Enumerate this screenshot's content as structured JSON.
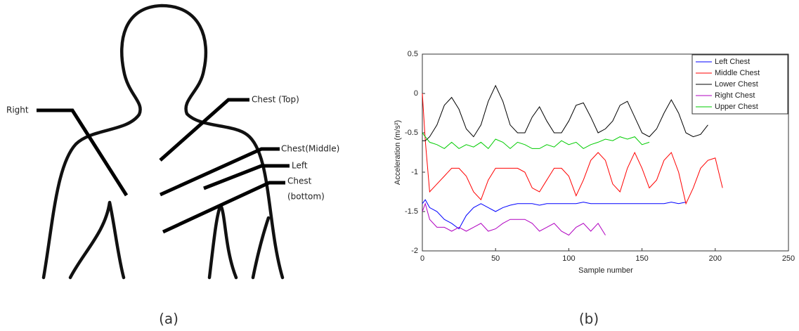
{
  "diagram": {
    "labels": [
      "Right",
      "Chest (Top)",
      "Chest(Middle)",
      "Left",
      "Chest",
      "(bottom)"
    ]
  },
  "captions": [
    "(a)",
    "(b)"
  ],
  "chart_data": {
    "type": "line",
    "x_label": "Sample number",
    "y_label": "Acceleration (m/s²)",
    "x": [
      0,
      2,
      5,
      10,
      15,
      20,
      25,
      30,
      35,
      40,
      45,
      50,
      55,
      60,
      65,
      70,
      75,
      80,
      85,
      90,
      95,
      100,
      105,
      110,
      115,
      120,
      125,
      130,
      135,
      140,
      145,
      150,
      155,
      160,
      165,
      170,
      175,
      180,
      185,
      190,
      195,
      200,
      205
    ],
    "series": [
      {
        "name": "Left Chest",
        "color": "#0000ff",
        "values": [
          -1.4,
          -1.35,
          -1.45,
          -1.5,
          -1.6,
          -1.65,
          -1.72,
          -1.55,
          -1.45,
          -1.4,
          -1.45,
          -1.5,
          -1.45,
          -1.42,
          -1.4,
          -1.4,
          -1.4,
          -1.42,
          -1.4,
          -1.4,
          -1.4,
          -1.4,
          -1.4,
          -1.38,
          -1.4,
          -1.4,
          -1.4,
          -1.4,
          -1.4,
          -1.4,
          -1.4,
          -1.4,
          -1.4,
          -1.4,
          -1.4,
          -1.38,
          -1.4,
          -1.38,
          null,
          null,
          null,
          null,
          null
        ]
      },
      {
        "name": "Middle Chest",
        "color": "#ff0000",
        "values": [
          0,
          -0.6,
          -1.25,
          -1.15,
          -1.05,
          -0.95,
          -0.95,
          -1.05,
          -1.25,
          -1.35,
          -1.1,
          -0.95,
          -0.95,
          -0.95,
          -0.95,
          -1.0,
          -1.2,
          -1.25,
          -1.1,
          -0.95,
          -0.95,
          -1.05,
          -1.3,
          -1.1,
          -0.85,
          -0.75,
          -0.85,
          -1.15,
          -1.25,
          -0.95,
          -0.75,
          -0.95,
          -1.2,
          -1.1,
          -0.85,
          -0.75,
          -1.0,
          -1.4,
          -1.2,
          -0.95,
          -0.85,
          -0.82,
          -1.2
        ]
      },
      {
        "name": "Lower Chest",
        "color": "#000000",
        "values": [
          -0.6,
          -0.6,
          -0.55,
          -0.4,
          -0.15,
          -0.05,
          -0.2,
          -0.45,
          -0.55,
          -0.4,
          -0.1,
          0.1,
          -0.1,
          -0.4,
          -0.5,
          -0.5,
          -0.3,
          -0.17,
          -0.35,
          -0.5,
          -0.5,
          -0.35,
          -0.15,
          -0.12,
          -0.3,
          -0.5,
          -0.45,
          -0.35,
          -0.15,
          -0.1,
          -0.3,
          -0.5,
          -0.55,
          -0.45,
          -0.25,
          -0.08,
          -0.25,
          -0.5,
          -0.55,
          -0.52,
          -0.4,
          null,
          null
        ]
      },
      {
        "name": "Right Chest",
        "color": "#b000c0",
        "values": [
          -1.5,
          -1.4,
          -1.6,
          -1.7,
          -1.7,
          -1.75,
          -1.7,
          -1.75,
          -1.7,
          -1.65,
          -1.75,
          -1.72,
          -1.65,
          -1.6,
          -1.6,
          -1.6,
          -1.65,
          -1.75,
          -1.7,
          -1.65,
          -1.75,
          -1.8,
          -1.7,
          -1.65,
          -1.75,
          -1.65,
          -1.8,
          null,
          null,
          null,
          null,
          null,
          null,
          null,
          null,
          null,
          null,
          null,
          null,
          null,
          null,
          null,
          null
        ]
      },
      {
        "name": "Upper Chest",
        "color": "#00cc00",
        "values": [
          -0.5,
          -0.55,
          -0.62,
          -0.65,
          -0.7,
          -0.62,
          -0.7,
          -0.65,
          -0.68,
          -0.62,
          -0.7,
          -0.58,
          -0.62,
          -0.7,
          -0.62,
          -0.65,
          -0.7,
          -0.7,
          -0.65,
          -0.68,
          -0.6,
          -0.65,
          -0.62,
          -0.7,
          -0.65,
          -0.62,
          -0.58,
          -0.6,
          -0.55,
          -0.58,
          -0.55,
          -0.65,
          -0.62,
          null,
          null,
          null,
          null,
          null,
          null,
          null,
          null,
          null,
          null
        ]
      }
    ],
    "xlim": [
      0,
      250
    ],
    "ylim": [
      -2,
      0.5
    ],
    "xticks": [
      0,
      50,
      100,
      150,
      200,
      250
    ],
    "yticks": [
      0.5,
      0,
      -0.5,
      -1,
      -1.5,
      -2
    ],
    "legend": "upper right",
    "grid": false
  }
}
